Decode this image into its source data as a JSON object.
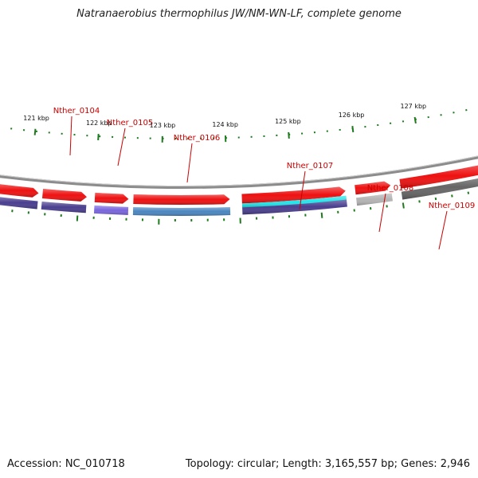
{
  "title": "Natranaerobius thermophilus JW/NM-WN-LF, complete genome",
  "footer": {
    "accession": "Accession: NC_010718",
    "summary": "Topology: circular; Length: 3,165,557 bp; Genes: 2,946"
  },
  "colors": {
    "backbone": "#8c8c8c",
    "cds": "#ee1111",
    "tick": "#1e7a1e",
    "label": "#cc0000"
  },
  "map": {
    "scale_labels": [
      "121 kbp",
      "122 kbp",
      "123 kbp",
      "124 kbp",
      "125 kbp",
      "126 kbp",
      "127 kbp"
    ],
    "genes": [
      {
        "label": "Nther_0104",
        "color": "#4a3f8f"
      },
      {
        "label": "Nther_0105",
        "color": "#7a66dd"
      },
      {
        "label": "Nther_0106",
        "color": "#4a86c0"
      },
      {
        "label": "Nther_0107",
        "color": "#4a3f8f"
      },
      {
        "label": "Nther_0108",
        "color": "#b4b4b4"
      },
      {
        "label": "Nther_0109",
        "color": "#666666"
      }
    ],
    "extra_feature": {
      "color": "#22e6ea"
    }
  }
}
